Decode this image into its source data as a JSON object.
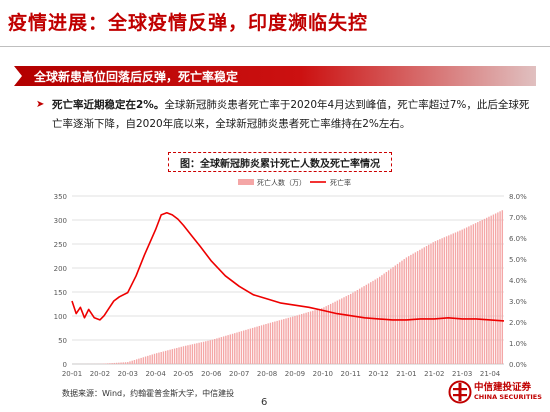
{
  "page": {
    "title": "疫情进展：全球疫情反弹，印度濒临失控",
    "banner": "全球新患高位回落后反弹，死亡率稳定",
    "body_lead": "死亡率近期稳定在2%。",
    "body_rest": "全球新冠肺炎患者死亡率于2020年4月达到峰值，死亡率超过7%，此后全球死亡率逐渐下降，自2020年底以来，全球新冠肺炎患者死亡率维持在2%左右。",
    "chart_heading": "图：全球新冠肺炎累计死亡人数及死亡率情况",
    "source": "数据来源：Wind，约翰霍普金斯大学，中信建投",
    "page_number": "6",
    "logo_cn": "中信建投证券",
    "logo_en": "CHINA SECURITIES"
  },
  "colors": {
    "title": "#c00000",
    "bars": "#f4a6a6",
    "line": "#ee0000",
    "grid": "#d9d9d9",
    "axis_text": "#595959"
  },
  "chart_data": {
    "type": "bar",
    "title": "图：全球新冠肺炎累计死亡人数及死亡率情况",
    "x_ticks": [
      "20-01",
      "20-02",
      "20-03",
      "20-04",
      "20-05",
      "20-06",
      "20-07",
      "20-08",
      "20-09",
      "20-10",
      "20-11",
      "20-12",
      "21-01",
      "21-02",
      "21-03",
      "21-04"
    ],
    "y_left": {
      "min": 0,
      "max": 350,
      "ticks": [
        "0",
        "50",
        "100",
        "150",
        "200",
        "250",
        "300",
        "350"
      ]
    },
    "y_right": {
      "min": 0,
      "max": 8,
      "ticks": [
        "0.0%",
        "1.0%",
        "2.0%",
        "3.0%",
        "4.0%",
        "5.0%",
        "6.0%",
        "7.0%",
        "8.0%"
      ]
    },
    "grid": true,
    "legend_position": "top",
    "series": [
      {
        "name": "死亡人数（万）",
        "axis": "left",
        "kind": "bar",
        "x": [
          "20-01",
          "20-02",
          "20-03",
          "20-04",
          "20-05",
          "20-06",
          "20-07",
          "20-08",
          "20-09",
          "20-10",
          "20-11",
          "20-12",
          "21-01",
          "21-02",
          "21-03",
          "21-04"
        ],
        "values": [
          0.02,
          0.3,
          4,
          22,
          37,
          50,
          67,
          84,
          100,
          117,
          146,
          180,
          222,
          255,
          280,
          308
        ]
      },
      {
        "name": "死亡率",
        "axis": "right",
        "kind": "line",
        "unit": "%",
        "x": [
          0,
          0.15,
          0.3,
          0.45,
          0.6,
          0.8,
          1.0,
          1.15,
          1.3,
          1.5,
          1.7,
          2.0,
          2.3,
          2.6,
          3.0,
          3.2,
          3.4,
          3.6,
          3.8,
          4.0,
          4.3,
          4.6,
          5.0,
          5.5,
          6.0,
          6.5,
          7.0,
          7.5,
          8.0,
          8.5,
          9.0,
          9.5,
          10.0,
          10.5,
          11.0,
          11.5,
          12.0,
          12.5,
          13.0,
          13.5,
          14.0,
          14.5,
          15.0,
          15.5
        ],
        "values": [
          3.0,
          2.4,
          2.7,
          2.2,
          2.6,
          2.2,
          2.1,
          2.3,
          2.6,
          3.0,
          3.2,
          3.4,
          4.2,
          5.2,
          6.4,
          7.1,
          7.2,
          7.1,
          6.9,
          6.6,
          6.1,
          5.6,
          4.9,
          4.2,
          3.7,
          3.3,
          3.1,
          2.9,
          2.8,
          2.7,
          2.55,
          2.4,
          2.3,
          2.2,
          2.15,
          2.1,
          2.1,
          2.15,
          2.15,
          2.2,
          2.15,
          2.15,
          2.1,
          2.05
        ]
      }
    ]
  }
}
